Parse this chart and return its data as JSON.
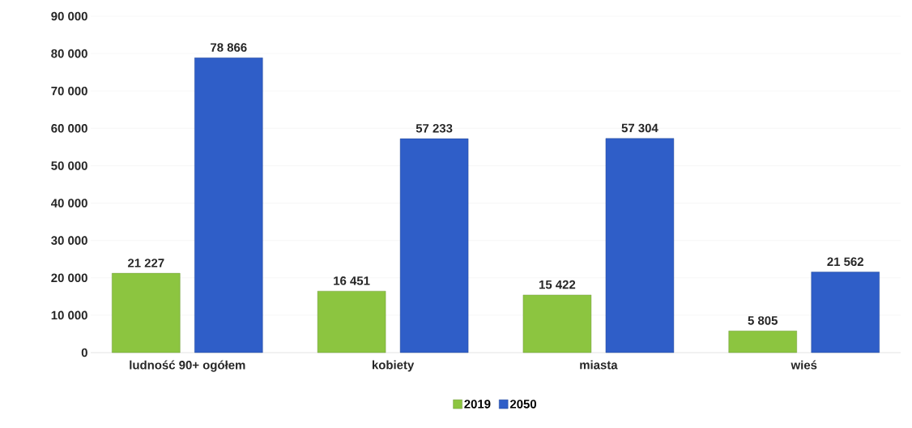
{
  "chart_data": {
    "type": "bar",
    "categories": [
      "ludność 90+ ogółem",
      "kobiety",
      "miasta",
      "wieś"
    ],
    "series": [
      {
        "name": "2019",
        "color": "#8cc540",
        "values": [
          21227,
          16451,
          15422,
          5805
        ],
        "value_labels": [
          "21 227",
          "16 451",
          "15 422",
          "5 805"
        ]
      },
      {
        "name": "2050",
        "color": "#2f5ec8",
        "values": [
          78866,
          57233,
          57304,
          21562
        ],
        "value_labels": [
          "78 866",
          "57 233",
          "57 304",
          "21 562"
        ]
      }
    ],
    "ylim": [
      0,
      90000
    ],
    "yticks": [
      {
        "value": 0,
        "label": "0"
      },
      {
        "value": 10000,
        "label": "10 000"
      },
      {
        "value": 20000,
        "label": "20 000"
      },
      {
        "value": 30000,
        "label": "30 000"
      },
      {
        "value": 40000,
        "label": "40 000"
      },
      {
        "value": 50000,
        "label": "50 000"
      },
      {
        "value": 60000,
        "label": "60 000"
      },
      {
        "value": 70000,
        "label": "70 000"
      },
      {
        "value": 80000,
        "label": "80 000"
      },
      {
        "value": 90000,
        "label": "90 000"
      }
    ],
    "grid": "y",
    "legend": "bottom"
  }
}
